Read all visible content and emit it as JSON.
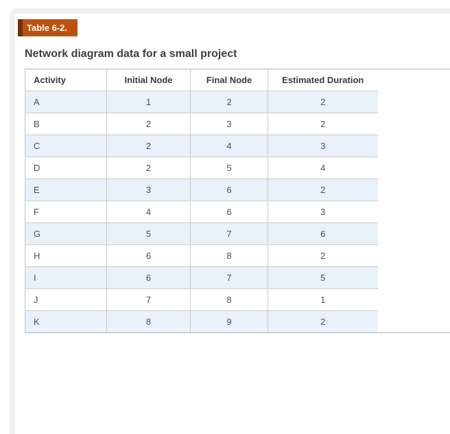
{
  "badge": {
    "label": "Table 6-2.",
    "background_color": "#bc520f",
    "strip_color": "#73300c"
  },
  "title": "Network diagram data for a small project",
  "table": {
    "columns": [
      "Activity",
      "Initial Node",
      "Final Node",
      "Estimated Duration"
    ],
    "rows": [
      [
        "A",
        "1",
        "2",
        "2"
      ],
      [
        "B",
        "2",
        "3",
        "2"
      ],
      [
        "C",
        "2",
        "4",
        "3"
      ],
      [
        "D",
        "2",
        "5",
        "4"
      ],
      [
        "E",
        "3",
        "6",
        "2"
      ],
      [
        "F",
        "4",
        "6",
        "3"
      ],
      [
        "G",
        "5",
        "7",
        "6"
      ],
      [
        "H",
        "6",
        "8",
        "2"
      ],
      [
        "I",
        "6",
        "7",
        "5"
      ],
      [
        "J",
        "7",
        "8",
        "1"
      ],
      [
        "K",
        "8",
        "9",
        "2"
      ]
    ],
    "stripe_color": "#e9f2fa",
    "rule_color": "#b2b2b2"
  }
}
